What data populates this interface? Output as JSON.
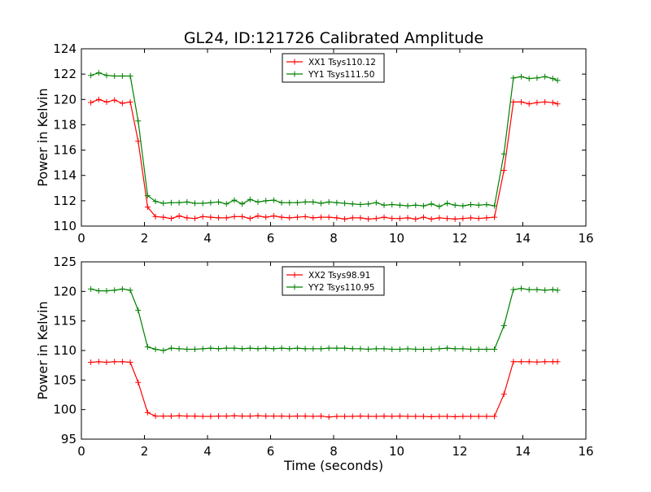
{
  "chart_data": {
    "type": "line",
    "title": "GL24, ID:121726 Calibrated Amplitude",
    "x": [
      0.3,
      0.55,
      0.8,
      1.05,
      1.3,
      1.55,
      1.8,
      2.1,
      2.35,
      2.6,
      2.85,
      3.1,
      3.35,
      3.6,
      3.85,
      4.1,
      4.35,
      4.6,
      4.85,
      5.1,
      5.35,
      5.6,
      5.85,
      6.1,
      6.35,
      6.6,
      6.85,
      7.1,
      7.35,
      7.6,
      7.85,
      8.1,
      8.35,
      8.6,
      8.85,
      9.1,
      9.35,
      9.6,
      9.85,
      10.1,
      10.35,
      10.6,
      10.85,
      11.1,
      11.35,
      11.6,
      11.85,
      12.1,
      12.35,
      12.6,
      12.85,
      13.1,
      13.4,
      13.7,
      13.95,
      14.2,
      14.45,
      14.7,
      14.95,
      15.1
    ],
    "panels": [
      {
        "ylabel": "Power in Kelvin",
        "xlabel": "",
        "xlim": [
          0,
          16
        ],
        "ylim": [
          110,
          124
        ],
        "xticks": [
          "0",
          "2",
          "4",
          "6",
          "8",
          "10",
          "12",
          "14",
          "16"
        ],
        "yticks": [
          "110",
          "112",
          "114",
          "116",
          "118",
          "120",
          "122",
          "124"
        ],
        "legend": "top-center",
        "series": [
          {
            "name": "XX1 Tsys110.12",
            "color": "#ff0000",
            "values": [
              119.75,
              120.0,
              119.8,
              119.95,
              119.7,
              119.8,
              116.7,
              111.5,
              110.75,
              110.7,
              110.6,
              110.8,
              110.65,
              110.6,
              110.75,
              110.7,
              110.65,
              110.65,
              110.75,
              110.75,
              110.6,
              110.8,
              110.7,
              110.8,
              110.7,
              110.65,
              110.7,
              110.75,
              110.65,
              110.7,
              110.7,
              110.65,
              110.55,
              110.65,
              110.65,
              110.55,
              110.6,
              110.7,
              110.6,
              110.6,
              110.65,
              110.55,
              110.7,
              110.55,
              110.65,
              110.6,
              110.55,
              110.6,
              110.65,
              110.6,
              110.65,
              110.7,
              114.4,
              119.8,
              119.8,
              119.65,
              119.75,
              119.8,
              119.75,
              119.65
            ]
          },
          {
            "name": "YY1 Tsys111.50",
            "color": "#008000",
            "values": [
              121.9,
              122.1,
              121.9,
              121.85,
              121.85,
              121.85,
              118.3,
              112.4,
              111.95,
              111.8,
              111.85,
              111.85,
              111.9,
              111.8,
              111.8,
              111.85,
              111.9,
              111.75,
              112.05,
              111.75,
              112.1,
              111.9,
              112.0,
              112.05,
              111.85,
              111.85,
              111.85,
              111.9,
              111.9,
              111.8,
              111.9,
              111.85,
              111.8,
              111.75,
              111.7,
              111.75,
              111.85,
              111.65,
              111.7,
              111.65,
              111.6,
              111.65,
              111.6,
              111.75,
              111.55,
              111.8,
              111.65,
              111.6,
              111.7,
              111.65,
              111.7,
              111.6,
              115.7,
              121.7,
              121.8,
              121.65,
              121.7,
              121.8,
              121.65,
              121.5
            ]
          }
        ]
      },
      {
        "ylabel": "Power in Kelvin",
        "xlabel": "Time (seconds)",
        "xlim": [
          0,
          16
        ],
        "ylim": [
          95,
          125
        ],
        "xticks": [
          "0",
          "2",
          "4",
          "6",
          "8",
          "10",
          "12",
          "14",
          "16"
        ],
        "yticks": [
          "95",
          "100",
          "105",
          "110",
          "115",
          "120",
          "125"
        ],
        "legend": "top-center",
        "series": [
          {
            "name": "XX2 Tsys98.91",
            "color": "#ff0000",
            "values": [
              108.0,
              108.1,
              108.0,
              108.1,
              108.1,
              108.0,
              104.6,
              99.5,
              98.9,
              98.9,
              98.9,
              98.95,
              98.9,
              98.9,
              98.85,
              98.85,
              98.9,
              98.9,
              98.95,
              98.9,
              98.9,
              98.95,
              98.9,
              98.9,
              98.9,
              98.85,
              98.9,
              98.9,
              98.85,
              98.9,
              98.75,
              98.85,
              98.85,
              98.85,
              98.9,
              98.85,
              98.85,
              98.9,
              98.85,
              98.9,
              98.85,
              98.85,
              98.85,
              98.8,
              98.85,
              98.85,
              98.8,
              98.85,
              98.85,
              98.85,
              98.85,
              98.85,
              102.6,
              108.1,
              108.1,
              108.1,
              108.05,
              108.1,
              108.1,
              108.1
            ]
          },
          {
            "name": "YY2 Tsys110.95",
            "color": "#008000",
            "values": [
              120.4,
              120.1,
              120.1,
              120.2,
              120.4,
              120.2,
              116.8,
              110.6,
              110.2,
              110.0,
              110.4,
              110.3,
              110.2,
              110.2,
              110.3,
              110.4,
              110.3,
              110.4,
              110.4,
              110.3,
              110.4,
              110.3,
              110.4,
              110.3,
              110.4,
              110.3,
              110.4,
              110.3,
              110.3,
              110.3,
              110.4,
              110.4,
              110.4,
              110.3,
              110.3,
              110.2,
              110.3,
              110.3,
              110.2,
              110.2,
              110.3,
              110.2,
              110.2,
              110.2,
              110.3,
              110.4,
              110.3,
              110.3,
              110.2,
              110.2,
              110.2,
              110.2,
              114.2,
              120.3,
              120.5,
              120.3,
              120.3,
              120.2,
              120.3,
              120.2
            ]
          }
        ]
      }
    ]
  }
}
